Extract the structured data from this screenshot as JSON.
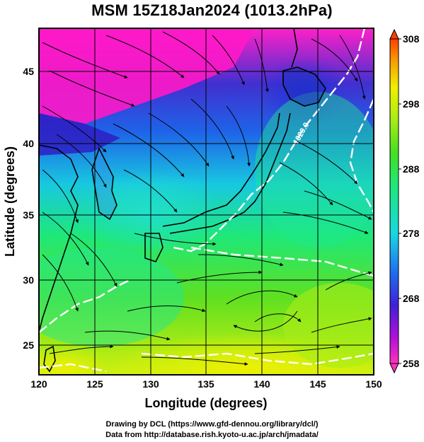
{
  "title": "MSM 15Z18Jan2024 (1013.2hPa)",
  "x_axis": {
    "label": "Longitude (degrees)",
    "ticks": [
      "120",
      "125",
      "130",
      "135",
      "140",
      "145",
      "150"
    ],
    "range": [
      120,
      150
    ]
  },
  "y_axis": {
    "label": "Latitude  (degrees)",
    "ticks": [
      "25",
      "30",
      "35",
      "40",
      "45"
    ],
    "range": [
      22.4,
      47.6
    ]
  },
  "colorbar": {
    "ticks": [
      "258",
      "268",
      "278",
      "288",
      "298",
      "308"
    ],
    "range": [
      258,
      308
    ],
    "colors": [
      "#ff33bb",
      "#8800cc",
      "#2222dd",
      "#1e6ef0",
      "#18d8e0",
      "#1ee878",
      "#44e020",
      "#a8ec18",
      "#f0f000",
      "#f8b000",
      "#ff5000"
    ]
  },
  "contour_label": "1020.0",
  "credits": {
    "line1": "Drawing by DCL (https://www.gfd-dennou.org/library/dcl/)",
    "line2": "Data from http://database.rish.kyoto-u.ac.jp/arch/jmadata/"
  }
}
